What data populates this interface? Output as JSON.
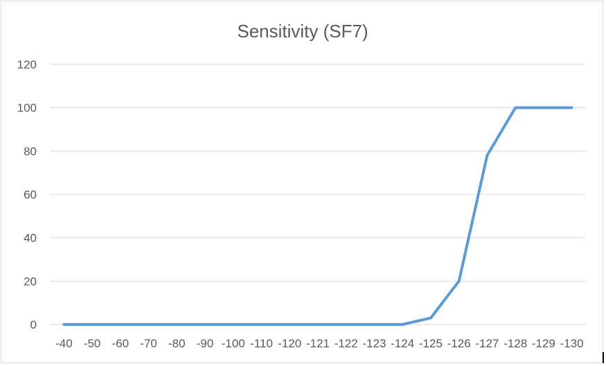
{
  "chart_data": {
    "type": "line",
    "title": "Sensitivity (SF7)",
    "xlabel": "",
    "ylabel": "",
    "categories": [
      "-40",
      "-50",
      "-60",
      "-70",
      "-80",
      "-90",
      "-100",
      "-110",
      "-120",
      "-121",
      "-122",
      "-123",
      "-124",
      "-125",
      "-126",
      "-127",
      "-128",
      "-129",
      "-130"
    ],
    "series": [
      {
        "values": [
          0,
          0,
          0,
          0,
          0,
          0,
          0,
          0,
          0,
          0,
          0,
          0,
          0,
          3,
          20,
          78,
          100,
          100,
          100
        ]
      }
    ],
    "ylim": [
      0,
      120
    ],
    "yticks": [
      0,
      20,
      40,
      60,
      80,
      100,
      120
    ],
    "grid": true,
    "legend": "none",
    "colors": {
      "line": "#5b9bd5",
      "grid": "#d9d9d9",
      "text": "#595959"
    }
  }
}
